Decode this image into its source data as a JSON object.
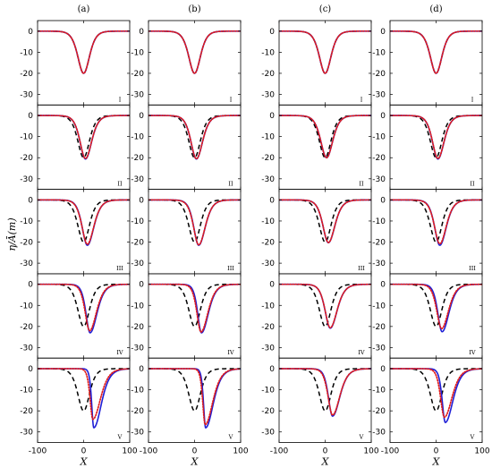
{
  "figure": {
    "ylabel": "η/Ā(m)",
    "xlabel": "X",
    "columns": [
      "(a)",
      "(b)",
      "(c)",
      "(d)"
    ],
    "rows": [
      "I",
      "II",
      "III",
      "IV",
      "V"
    ]
  },
  "chart_data": {
    "type": "line",
    "layout": "grid of 4 columns × 5 rows of panels",
    "xlim": [
      -100,
      100
    ],
    "xticks": [
      -100,
      0,
      100
    ],
    "ylim": [
      -35,
      5
    ],
    "yticks": [
      0,
      -10,
      -20,
      -30
    ],
    "grid": false,
    "legend": "none",
    "series_styles": [
      {
        "style": "solid",
        "color": "#1f1fd6"
      },
      {
        "style": "dotted",
        "color": "#e01b1b"
      },
      {
        "style": "dashed",
        "color": "#000000"
      }
    ],
    "panels": [
      {
        "column": "(a)",
        "row": "I",
        "solid": {
          "amp": 20,
          "shift": 0,
          "wl": 17,
          "wr": 17
        },
        "dotted": {
          "amp": 20,
          "shift": 0,
          "wl": 17,
          "wr": 17
        },
        "dashed": {
          "amp": 20,
          "shift": 0,
          "wl": 17,
          "wr": 17
        }
      },
      {
        "column": "(a)",
        "row": "II",
        "solid": {
          "amp": 20.6,
          "shift": 4,
          "wl": 16,
          "wr": 18
        },
        "dotted": {
          "amp": 20.4,
          "shift": 4,
          "wl": 16,
          "wr": 18
        },
        "dashed": {
          "amp": 20,
          "shift": 0,
          "wl": 17,
          "wr": 17
        }
      },
      {
        "column": "(a)",
        "row": "III",
        "solid": {
          "amp": 21.5,
          "shift": 8,
          "wl": 15,
          "wr": 19
        },
        "dotted": {
          "amp": 21,
          "shift": 8,
          "wl": 15.5,
          "wr": 19
        },
        "dashed": {
          "amp": 20,
          "shift": 0,
          "wl": 17,
          "wr": 17
        }
      },
      {
        "column": "(a)",
        "row": "IV",
        "solid": {
          "amp": 23,
          "shift": 14,
          "wl": 12,
          "wr": 20
        },
        "dotted": {
          "amp": 22,
          "shift": 13,
          "wl": 13,
          "wr": 20
        },
        "dashed": {
          "amp": 20,
          "shift": 0,
          "wl": 17,
          "wr": 17
        }
      },
      {
        "column": "(a)",
        "row": "V",
        "solid": {
          "amp": 28,
          "shift": 22,
          "wl": 6,
          "wr": 22
        },
        "dotted": {
          "amp": 24,
          "shift": 20,
          "wl": 8,
          "wr": 22
        },
        "dashed": {
          "amp": 20,
          "shift": 0,
          "wl": 17,
          "wr": 17
        }
      },
      {
        "column": "(b)",
        "row": "I",
        "solid": {
          "amp": 20,
          "shift": 0,
          "wl": 17,
          "wr": 17
        },
        "dotted": {
          "amp": 20,
          "shift": 0,
          "wl": 17,
          "wr": 17
        },
        "dashed": {
          "amp": 20,
          "shift": 0,
          "wl": 17,
          "wr": 17
        }
      },
      {
        "column": "(b)",
        "row": "II",
        "solid": {
          "amp": 20.6,
          "shift": 4,
          "wl": 16,
          "wr": 18
        },
        "dotted": {
          "amp": 20.5,
          "shift": 4,
          "wl": 16,
          "wr": 18
        },
        "dashed": {
          "amp": 20,
          "shift": 0,
          "wl": 17,
          "wr": 17
        }
      },
      {
        "column": "(b)",
        "row": "III",
        "solid": {
          "amp": 21.5,
          "shift": 9,
          "wl": 14.5,
          "wr": 19
        },
        "dotted": {
          "amp": 21.3,
          "shift": 9,
          "wl": 15,
          "wr": 19
        },
        "dashed": {
          "amp": 20,
          "shift": 0,
          "wl": 17,
          "wr": 17
        }
      },
      {
        "column": "(b)",
        "row": "IV",
        "solid": {
          "amp": 23,
          "shift": 15,
          "wl": 11,
          "wr": 20
        },
        "dotted": {
          "amp": 22.6,
          "shift": 14,
          "wl": 12,
          "wr": 20
        },
        "dashed": {
          "amp": 20,
          "shift": 0,
          "wl": 17,
          "wr": 17
        }
      },
      {
        "column": "(b)",
        "row": "V",
        "solid": {
          "amp": 28,
          "shift": 24,
          "wl": 6,
          "wr": 22
        },
        "dotted": {
          "amp": 26.5,
          "shift": 23,
          "wl": 7,
          "wr": 22
        },
        "dashed": {
          "amp": 20,
          "shift": 0,
          "wl": 17,
          "wr": 17
        }
      },
      {
        "column": "(c)",
        "row": "I",
        "solid": {
          "amp": 20,
          "shift": 0,
          "wl": 17,
          "wr": 17
        },
        "dotted": {
          "amp": 20,
          "shift": 0,
          "wl": 17,
          "wr": 17
        },
        "dashed": {
          "amp": 20,
          "shift": 0,
          "wl": 17,
          "wr": 17
        }
      },
      {
        "column": "(c)",
        "row": "II",
        "solid": {
          "amp": 20,
          "shift": 3,
          "wl": 17,
          "wr": 18
        },
        "dotted": {
          "amp": 20,
          "shift": 3,
          "wl": 17,
          "wr": 18
        },
        "dashed": {
          "amp": 20,
          "shift": 0,
          "wl": 17,
          "wr": 17
        }
      },
      {
        "column": "(c)",
        "row": "III",
        "solid": {
          "amp": 20.3,
          "shift": 7,
          "wl": 16,
          "wr": 19
        },
        "dotted": {
          "amp": 20.2,
          "shift": 7,
          "wl": 16,
          "wr": 19
        },
        "dashed": {
          "amp": 20,
          "shift": 0,
          "wl": 17,
          "wr": 17
        }
      },
      {
        "column": "(c)",
        "row": "IV",
        "solid": {
          "amp": 20.8,
          "shift": 11,
          "wl": 15,
          "wr": 20
        },
        "dotted": {
          "amp": 20.6,
          "shift": 11,
          "wl": 15,
          "wr": 20
        },
        "dashed": {
          "amp": 20,
          "shift": 0,
          "wl": 17,
          "wr": 17
        }
      },
      {
        "column": "(c)",
        "row": "V",
        "solid": {
          "amp": 22.5,
          "shift": 16,
          "wl": 12,
          "wr": 21
        },
        "dotted": {
          "amp": 22,
          "shift": 16,
          "wl": 13,
          "wr": 21
        },
        "dashed": {
          "amp": 20,
          "shift": 0,
          "wl": 17,
          "wr": 17
        }
      },
      {
        "column": "(d)",
        "row": "I",
        "solid": {
          "amp": 20,
          "shift": 0,
          "wl": 17,
          "wr": 17
        },
        "dotted": {
          "amp": 20,
          "shift": 0,
          "wl": 17,
          "wr": 17
        },
        "dashed": {
          "amp": 20,
          "shift": 0,
          "wl": 17,
          "wr": 17
        }
      },
      {
        "column": "(d)",
        "row": "II",
        "solid": {
          "amp": 20.6,
          "shift": 4,
          "wl": 16,
          "wr": 18
        },
        "dotted": {
          "amp": 20.4,
          "shift": 4,
          "wl": 16,
          "wr": 18
        },
        "dashed": {
          "amp": 20,
          "shift": 0,
          "wl": 17,
          "wr": 17
        }
      },
      {
        "column": "(d)",
        "row": "III",
        "solid": {
          "amp": 21.5,
          "shift": 8,
          "wl": 15,
          "wr": 19
        },
        "dotted": {
          "amp": 20.8,
          "shift": 8,
          "wl": 15.5,
          "wr": 19
        },
        "dashed": {
          "amp": 20,
          "shift": 0,
          "wl": 17,
          "wr": 17
        }
      },
      {
        "column": "(d)",
        "row": "IV",
        "solid": {
          "amp": 22.5,
          "shift": 13,
          "wl": 12.5,
          "wr": 20
        },
        "dotted": {
          "amp": 21,
          "shift": 12,
          "wl": 14,
          "wr": 20
        },
        "dashed": {
          "amp": 20,
          "shift": 0,
          "wl": 17,
          "wr": 17
        }
      },
      {
        "column": "(d)",
        "row": "V",
        "solid": {
          "amp": 25.5,
          "shift": 20,
          "wl": 9,
          "wr": 22
        },
        "dotted": {
          "amp": 23,
          "shift": 18,
          "wl": 11,
          "wr": 22
        },
        "dashed": {
          "amp": 20,
          "shift": 0,
          "wl": 17,
          "wr": 17
        }
      }
    ]
  }
}
